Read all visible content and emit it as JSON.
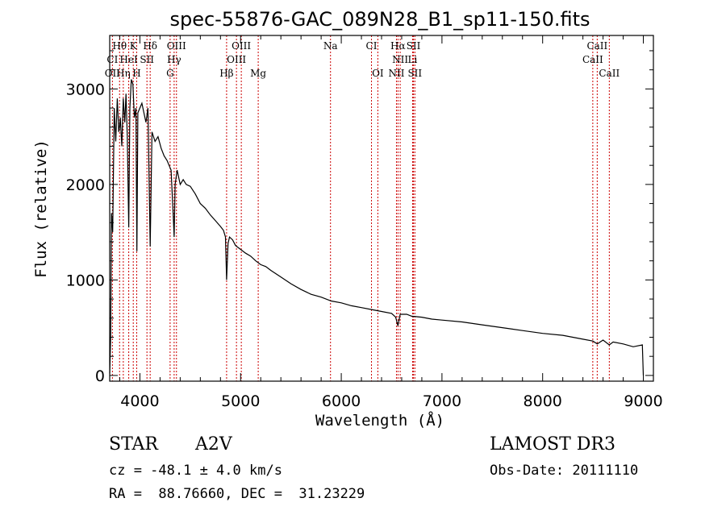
{
  "chart_data": {
    "type": "line",
    "title": "spec-55876-GAC_089N28_B1_sp11-150.fits",
    "xlabel": "Wavelength (Å)",
    "ylabel": "Flux (relative)",
    "xlim": [
      3700,
      9100
    ],
    "ylim": [
      -60,
      3560
    ],
    "xticks": [
      4000,
      5000,
      6000,
      7000,
      8000,
      9000
    ],
    "yticks": [
      0,
      1000,
      2000,
      3000
    ],
    "xtick_labels": [
      "4000",
      "5000",
      "6000",
      "7000",
      "8000",
      "9000"
    ],
    "ytick_labels": [
      "0",
      "1000",
      "2000",
      "3000"
    ],
    "series": [
      {
        "name": "flux",
        "x": [
          3700,
          3710,
          3718,
          3730,
          3745,
          3760,
          3775,
          3790,
          3798,
          3805,
          3820,
          3835,
          3850,
          3862,
          3875,
          3889,
          3900,
          3915,
          3930,
          3945,
          3960,
          3970,
          3980,
          4000,
          4020,
          4040,
          4060,
          4080,
          4102,
          4120,
          4150,
          4180,
          4210,
          4240,
          4270,
          4290,
          4310,
          4330,
          4340,
          4350,
          4370,
          4400,
          4430,
          4460,
          4500,
          4550,
          4600,
          4650,
          4700,
          4750,
          4800,
          4830,
          4850,
          4861,
          4875,
          4890,
          4920,
          4950,
          5000,
          5050,
          5100,
          5150,
          5200,
          5250,
          5300,
          5400,
          5500,
          5600,
          5700,
          5800,
          5900,
          6000,
          6100,
          6200,
          6300,
          6400,
          6500,
          6540,
          6563,
          6585,
          6650,
          6700,
          6800,
          6900,
          7000,
          7200,
          7400,
          7600,
          7800,
          8000,
          8200,
          8400,
          8498,
          8542,
          8600,
          8662,
          8700,
          8800,
          8900,
          8990,
          9000
        ],
        "y": [
          20,
          400,
          1700,
          1500,
          2800,
          2450,
          2900,
          2550,
          2600,
          2700,
          2400,
          2900,
          2650,
          2950,
          2500,
          1550,
          2800,
          3100,
          3050,
          2700,
          2800,
          1300,
          2750,
          2800,
          2850,
          2750,
          2650,
          2800,
          1350,
          2550,
          2450,
          2500,
          2380,
          2300,
          2250,
          2200,
          2150,
          1700,
          1450,
          2000,
          2150,
          2000,
          2050,
          2000,
          1980,
          1900,
          1800,
          1750,
          1680,
          1620,
          1560,
          1520,
          1450,
          1000,
          1380,
          1450,
          1420,
          1360,
          1320,
          1280,
          1250,
          1200,
          1160,
          1140,
          1100,
          1030,
          960,
          900,
          850,
          820,
          780,
          760,
          730,
          710,
          690,
          670,
          650,
          610,
          520,
          640,
          640,
          620,
          610,
          590,
          580,
          560,
          530,
          500,
          470,
          440,
          420,
          380,
          360,
          330,
          370,
          320,
          350,
          330,
          300,
          320,
          0
        ]
      }
    ],
    "spectral_lines": {
      "row1": [
        {
          "label": "Hθ",
          "x": 3798
        },
        {
          "label": "K",
          "x": 3934
        },
        {
          "label": "Hδ",
          "x": 4102
        },
        {
          "label": "OIII",
          "x": 4363
        },
        {
          "label": "OIII",
          "x": 5007
        },
        {
          "label": "Na",
          "x": 5893
        },
        {
          "label": "CI",
          "x": 6300
        },
        {
          "label": "Hα",
          "x": 6563
        },
        {
          "label": "SII",
          "x": 6717
        },
        {
          "label": "CaII",
          "x": 8542
        }
      ],
      "row2": [
        {
          "label": "CI",
          "x": 3727
        },
        {
          "label": "HeI",
          "x": 3889
        },
        {
          "label": "SII",
          "x": 4070
        },
        {
          "label": "Hγ",
          "x": 4340
        },
        {
          "label": "OIII",
          "x": 4959
        },
        {
          "label": "NII",
          "x": 6585
        },
        {
          "label": "Li",
          "x": 6708
        },
        {
          "label": "CaII",
          "x": 8498
        }
      ],
      "row3": [
        {
          "label": "OII",
          "x": 3727
        },
        {
          "label": "Hη",
          "x": 3835
        },
        {
          "label": "H",
          "x": 3968
        },
        {
          "label": "G",
          "x": 4300
        },
        {
          "label": "Hβ",
          "x": 4861
        },
        {
          "label": "Mg",
          "x": 5175
        },
        {
          "label": "OI",
          "x": 6363
        },
        {
          "label": "NII",
          "x": 6548
        },
        {
          "label": "SII",
          "x": 6731
        },
        {
          "label": "CaII",
          "x": 8662
        }
      ]
    }
  },
  "info": {
    "object_class": "STAR",
    "subclass": "A2V",
    "survey": "LAMOST DR3",
    "cz": "cz = -48.1 ± 4.0 km/s",
    "obs_date": "Obs-Date: 20111110",
    "coords": "RA =  88.76660, DEC =  31.23229"
  }
}
